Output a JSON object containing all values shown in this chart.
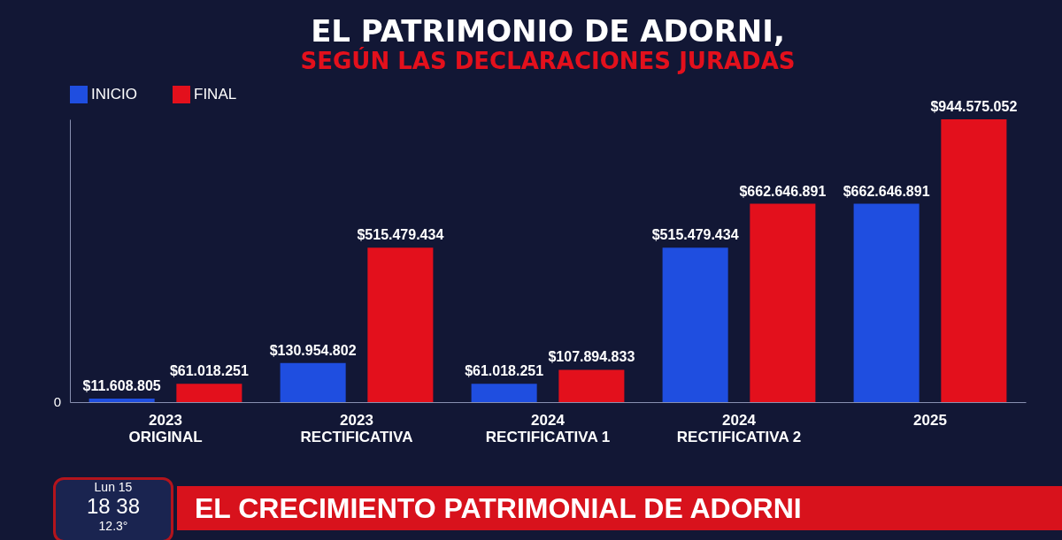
{
  "chart_data": {
    "type": "bar",
    "title": "EL PATRIMONIO DE ADORNI,",
    "subtitle": "SEGÚN LAS DECLARACIONES JURADAS",
    "categories": [
      "2023\nORIGINAL",
      "2023\nRECTIFICATIVA",
      "2024\nRECTIFICATIVA 1",
      "2024\nRECTIFICATIVA 2",
      "2025"
    ],
    "series": [
      {
        "name": "INICIO",
        "color": "#1f4ee0",
        "values": [
          11608805,
          130954802,
          61018251,
          515479434,
          662646891
        ],
        "value_labels": [
          "$11.608.805",
          "$130.954.802",
          "$61.018.251",
          "$515.479.434",
          "$662.646.891"
        ]
      },
      {
        "name": "FINAL",
        "color": "#e3101c",
        "values": [
          61018251,
          515479434,
          107894833,
          662646891,
          944575052
        ],
        "value_labels": [
          "$61.018.251",
          "$515.479.434",
          "$107.894.833",
          "$662.646.891",
          "$944.575.052"
        ]
      }
    ],
    "legend": "top left",
    "annotations": [
      "EL CRECIMIENTO PATRIMONIAL DE ADORNI",
      "Lun 15",
      "18 38",
      "12.3°",
      "0"
    ]
  }
}
